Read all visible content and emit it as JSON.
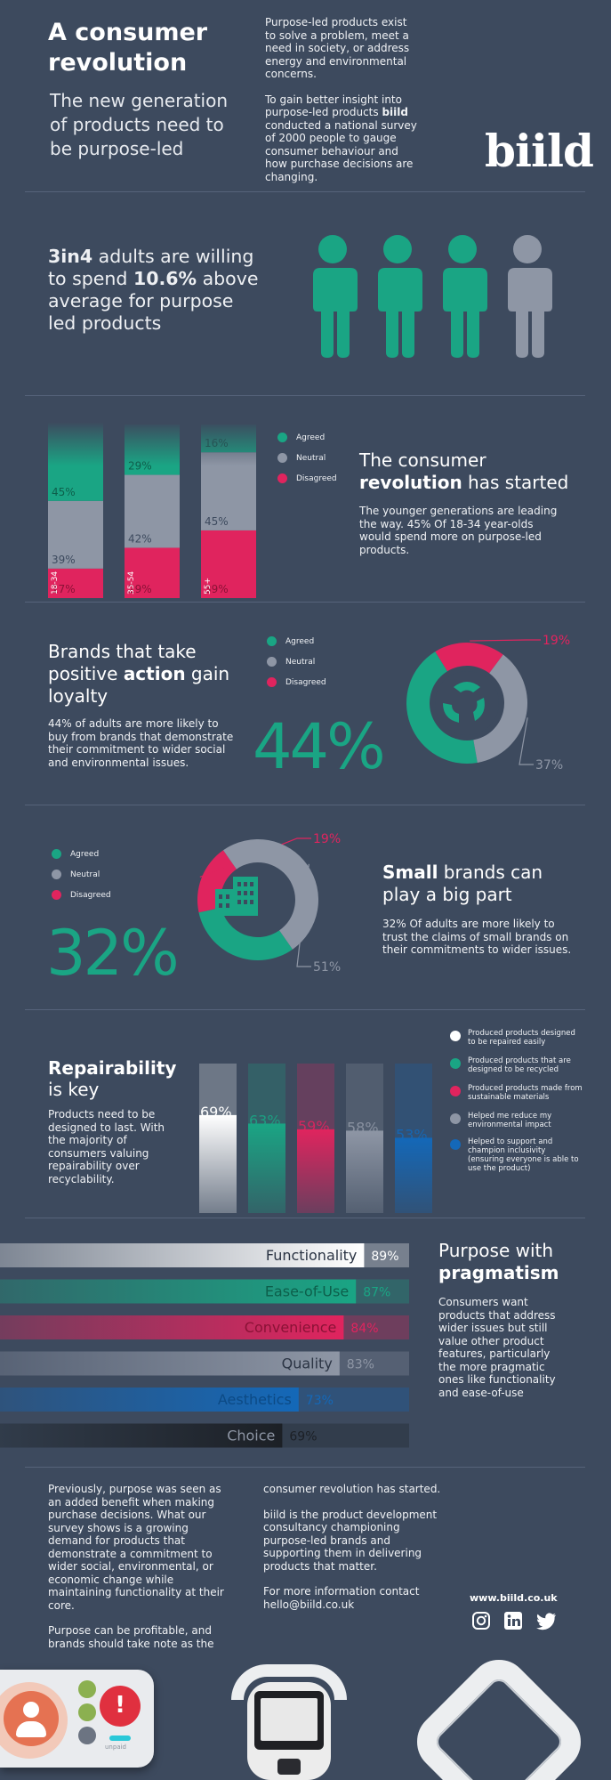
{
  "colors": {
    "background": "#3d4a5e",
    "agreed": "#1aa584",
    "neutral": "#8e96a5",
    "disagreed": "#e0245e",
    "blue": "#1468b8",
    "white": "#ffffff"
  },
  "header": {
    "title_line1": "A consumer",
    "title_line2": "revolution",
    "subtitle_line1": "The new generation",
    "subtitle_line2": "of products need to",
    "subtitle_line3": "be purpose-led",
    "intro_p1": "Purpose-led products exist to solve a problem, meet a need in society, or address energy and environmental concerns.",
    "intro_p2_pre": "To gain better insight into purpose-led products ",
    "intro_p2_brand": "biild",
    "intro_p2_post": " conducted a national survey of 2000 people to gauge consumer behaviour and how purchase decisions are changing.",
    "logo": "biild"
  },
  "section_adults": {
    "stat_bold": "3in4",
    "text1": " adults are willing to spend ",
    "pct_bold": "10.6%",
    "text2": " above average for purpose led products",
    "people_icons": [
      "person-icon-teal",
      "person-icon-teal",
      "person-icon-teal",
      "person-icon-grey"
    ]
  },
  "section_age": {
    "heading_line1": "The consumer",
    "heading_bold": "revolution",
    "heading_rest": " has started",
    "body": "The younger generations are leading the way. 45% Of 18-34 year-olds would spend more on purpose-led products.",
    "legend": [
      "Agreed",
      "Neutral",
      "Disagreed"
    ],
    "chart_data": {
      "type": "bar",
      "stacked": true,
      "categories": [
        "18-34",
        "35-54",
        "55+"
      ],
      "series": [
        {
          "name": "Agreed",
          "values": [
            45,
            29,
            16
          ]
        },
        {
          "name": "Neutral",
          "values": [
            39,
            42,
            45
          ]
        },
        {
          "name": "Disagreed",
          "values": [
            17,
            29,
            39
          ]
        }
      ],
      "value_labels": {
        "Agreed": [
          "45%",
          "29%",
          "16%"
        ],
        "Neutral": [
          "39%",
          "42%",
          "45%"
        ],
        "Disagreed": [
          "17%",
          "29%",
          "39%"
        ]
      },
      "title": "",
      "xlabel": "",
      "ylabel": ""
    }
  },
  "section_loyalty": {
    "heading_pre": "Brands that take positive ",
    "heading_bold": "action",
    "heading_post": " gain loyalty",
    "body": "44% of adults are more likely to buy from brands that demonstrate their commitment to wider social and environmental issues.",
    "big_number": "44%",
    "legend": [
      "Agreed",
      "Neutral",
      "Disagreed"
    ],
    "icon": "recycle-icon",
    "chart_data": {
      "type": "pie",
      "donut": true,
      "labels": [
        "Agreed",
        "Disagreed",
        "Neutral"
      ],
      "values": [
        44,
        19,
        37
      ],
      "value_labels": [
        "44%",
        "19%",
        "37%"
      ]
    }
  },
  "section_small": {
    "heading_bold": "Small",
    "heading_post": " brands can play a big part",
    "body": "32% Of adults are more likely to trust the claims of small brands on their commitments to wider issues.",
    "big_number": "32%",
    "legend": [
      "Agreed",
      "Neutral",
      "Disagreed"
    ],
    "icon": "building-icon",
    "chart_data": {
      "type": "pie",
      "donut": true,
      "labels": [
        "Agreed",
        "Disagreed",
        "Neutral"
      ],
      "values": [
        32,
        19,
        51
      ],
      "value_labels": [
        "32%",
        "19%",
        "51%"
      ]
    }
  },
  "section_repair": {
    "heading_bold": "Repairability",
    "heading_line2": "is key",
    "body": "Products need to be designed to last. With the majority of consumers valuing repairability over recyclability.",
    "chart_data": {
      "type": "bar",
      "categories": [
        "Produced products designed to be repaired easily",
        "Produced products that are designed to be recycled",
        "Produced products made from sustainable materials",
        "Helped me reduce my environmental impact",
        "Helped to support and champion inclusivity (ensuring everyone is able to use the product)"
      ],
      "values": [
        69,
        63,
        59,
        58,
        53
      ],
      "value_labels": [
        "69%",
        "63%",
        "59%",
        "58%",
        "53%"
      ],
      "colors": [
        "#ffffff",
        "#1aa584",
        "#e0245e",
        "#8e96a5",
        "#1468b8"
      ],
      "ylim": [
        0,
        100
      ]
    }
  },
  "section_pragmatism": {
    "heading_line1": "Purpose with",
    "heading_bold": "pragmatism",
    "body": "Consumers want products that address wider issues but still value other product features, particularly the more pragmatic ones like functionality and ease-of-use",
    "chart_data": {
      "type": "bar",
      "orientation": "horizontal",
      "categories": [
        "Functionality",
        "Ease-of-Use",
        "Convenience",
        "Quality",
        "Aesthetics",
        "Choice"
      ],
      "values": [
        89,
        87,
        84,
        83,
        73,
        69
      ],
      "value_labels": [
        "89%",
        "87%",
        "84%",
        "83%",
        "73%",
        "69%"
      ],
      "colors": [
        "#ffffff",
        "#1aa584",
        "#e0245e",
        "#8e96a5",
        "#1468b8",
        "#1c2026"
      ],
      "xlim": [
        0,
        100
      ]
    }
  },
  "footer": {
    "col1_p1": "Previously, purpose was seen as an added benefit when making purchase decisions. What our survey shows is a growing demand for products that demonstrate a commitment to wider social, environmental, or economic change while maintaining functionality at their core.",
    "col1_p2": "Purpose can be profitable, and brands should take note as the",
    "col2_p1": "consumer revolution has started.",
    "col2_p2": "biild is the product development consultancy championing purpose-led brands and supporting them in delivering products that matter.",
    "col2_p3": "For more information contact hello@biild.co.uk",
    "website": "www.biild.co.uk",
    "social_icons": [
      "instagram-icon",
      "linkedin-icon",
      "twitter-icon"
    ]
  },
  "products": {
    "device_left_label": "unpaid"
  }
}
